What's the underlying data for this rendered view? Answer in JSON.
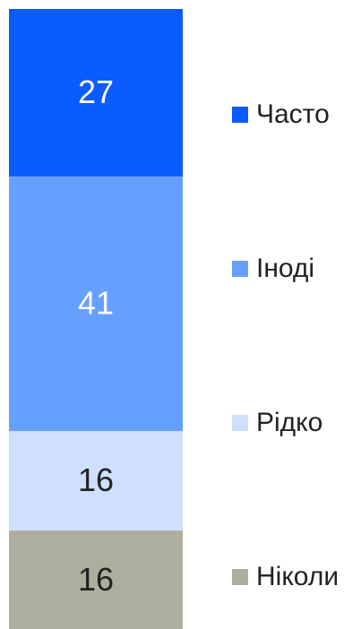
{
  "chart_data": {
    "type": "stacked_bar",
    "series": [
      {
        "name": "Часто",
        "color": "#0a5cff",
        "label_color": "#ffffff",
        "values": [
          27
        ]
      },
      {
        "name": "Іноді",
        "color": "#66a0ff",
        "label_color": "#ffffff",
        "values": [
          41
        ]
      },
      {
        "name": "Рідко",
        "color": "#cfe0ff",
        "label_color": "#222222",
        "values": [
          16
        ]
      },
      {
        "name": "Ніколи",
        "color": "#aeae9f",
        "label_color": "#222222",
        "values": [
          16
        ]
      }
    ],
    "legend": "right"
  }
}
